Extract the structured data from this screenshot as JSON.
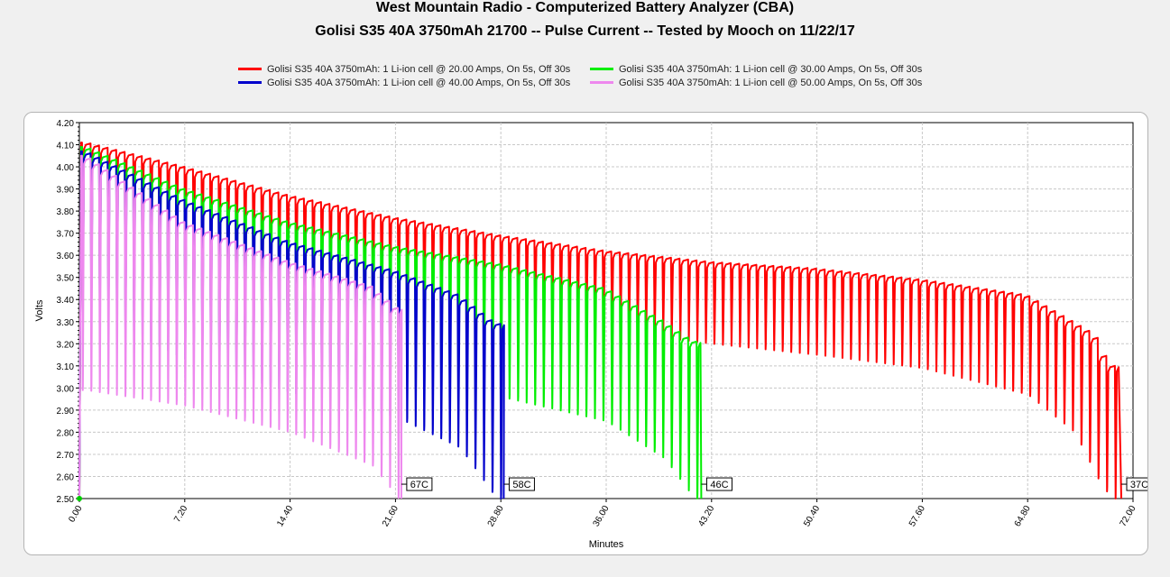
{
  "header": {
    "title": "West Mountain Radio - Computerized Battery Analyzer (CBA)",
    "subtitle": "Golisi S35 40A 3750mAh 21700 -- Pulse Current -- Tested by Mooch on 11/22/17"
  },
  "colors": {
    "series_20A": "#ff0000",
    "series_30A": "#00ee00",
    "series_40A": "#0000cc",
    "series_50A": "#ee88ee",
    "grid": "#c8c8c8"
  },
  "chart_data": {
    "type": "line",
    "title": "West Mountain Radio - Computerized Battery Analyzer (CBA)",
    "subtitle": "Golisi S35 40A 3750mAh 21700 -- Pulse Current -- Tested by Mooch on 11/22/17",
    "xlabel": "Minutes",
    "ylabel": "Volts",
    "xlim": [
      0,
      72
    ],
    "ylim": [
      2.5,
      4.2
    ],
    "xticks": [
      "0.00",
      "7.20",
      "14.40",
      "21.60",
      "28.80",
      "36.00",
      "43.20",
      "50.40",
      "57.60",
      "64.80",
      "72.00"
    ],
    "yticks": [
      "2.50",
      "2.60",
      "2.70",
      "2.80",
      "2.90",
      "3.00",
      "3.10",
      "3.20",
      "3.30",
      "3.40",
      "3.50",
      "3.60",
      "3.70",
      "3.80",
      "3.90",
      "4.00",
      "4.10",
      "4.20"
    ],
    "grid": true,
    "legend_position": "top",
    "pulse_period_min": 0.5833,
    "series": [
      {
        "name": "Golisi S35 40A 3750mAh: 1 Li-ion cell @ 20.00 Amps, On 5s, Off 30s",
        "color": "#ff0000",
        "end_x": 71.2,
        "end_temp": "37C",
        "rest_x": [
          0.5,
          7.2,
          14.4,
          21.6,
          28.8,
          36,
          43.2,
          50.4,
          57.6,
          64.8,
          69.5,
          70.5
        ],
        "rest_v": [
          4.11,
          4.0,
          3.87,
          3.77,
          3.69,
          3.62,
          3.57,
          3.54,
          3.49,
          3.42,
          3.24,
          3.1
        ],
        "load_x": [
          0.5,
          7.2,
          14.4,
          21.6,
          28.8,
          36,
          43.2,
          50.4,
          57.6,
          64.8,
          68,
          69.5,
          70.5
        ],
        "load_v": [
          3.73,
          3.58,
          3.45,
          3.37,
          3.32,
          3.26,
          3.2,
          3.15,
          3.09,
          2.97,
          2.8,
          2.6,
          2.5
        ]
      },
      {
        "name": "Golisi S35 40A 3750mAh: 1 Li-ion cell @ 30.00 Amps, On 5s, Off 30s",
        "color": "#00ee00",
        "end_x": 42.5,
        "end_temp": "46C",
        "rest_x": [
          0.5,
          7.2,
          14.4,
          21.6,
          28.8,
          36,
          40,
          42
        ],
        "rest_v": [
          4.09,
          3.9,
          3.75,
          3.64,
          3.56,
          3.45,
          3.3,
          3.21
        ],
        "load_x": [
          0.5,
          7.2,
          14.4,
          21.6,
          28.8,
          36,
          40,
          42
        ],
        "load_v": [
          3.42,
          3.22,
          3.1,
          3.02,
          2.96,
          2.85,
          2.68,
          2.5
        ]
      },
      {
        "name": "Golisi S35 40A 3750mAh: 1 Li-ion cell @ 40.00 Amps, On 5s, Off 30s",
        "color": "#0000cc",
        "end_x": 29.0,
        "end_temp": "58C",
        "rest_x": [
          0.5,
          7.2,
          14.4,
          21.6,
          26,
          28.5
        ],
        "rest_v": [
          4.07,
          3.85,
          3.66,
          3.53,
          3.42,
          3.29
        ],
        "load_x": [
          0.5,
          7.2,
          14.4,
          21.6,
          26,
          28.5
        ],
        "load_v": [
          3.35,
          3.13,
          2.98,
          2.87,
          2.73,
          2.5
        ]
      },
      {
        "name": "Golisi S35 40A 3750mAh: 1 Li-ion cell @ 50.00 Amps, On 5s, Off 30s",
        "color": "#ee88ee",
        "end_x": 22.0,
        "end_temp": "67C",
        "rest_x": [
          0.5,
          7.2,
          14.4,
          20,
          21.8
        ],
        "rest_v": [
          4.05,
          3.75,
          3.57,
          3.46,
          3.36
        ],
        "load_x": [
          0.5,
          7.2,
          14.4,
          20,
          21.8
        ],
        "load_v": [
          2.99,
          2.92,
          2.8,
          2.65,
          2.5
        ]
      }
    ]
  }
}
